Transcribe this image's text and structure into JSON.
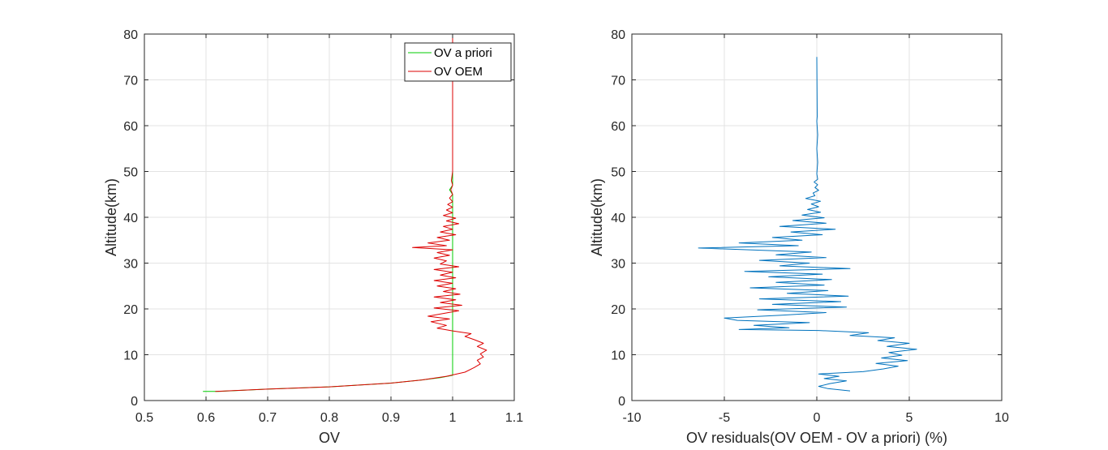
{
  "chart_data": [
    {
      "type": "line",
      "title": "",
      "xlabel": "OV",
      "ylabel": "Altitude(km)",
      "xlim": [
        0.5,
        1.1
      ],
      "ylim": [
        0,
        80
      ],
      "xticks": [
        0.5,
        0.6,
        0.7,
        0.8,
        0.9,
        1,
        1.1
      ],
      "xtick_labels": [
        "0.5",
        "0.6",
        "0.7",
        "0.8",
        "0.9",
        "1",
        "1.1"
      ],
      "yticks": [
        0,
        10,
        20,
        30,
        40,
        50,
        60,
        70,
        80
      ],
      "ytick_labels": [
        "0",
        "10",
        "20",
        "30",
        "40",
        "50",
        "60",
        "70",
        "80"
      ],
      "grid": true,
      "legend": "top-right",
      "series": [
        {
          "name": "OV a priori",
          "color": "#00cc00",
          "points": [
            [
              0.595,
              2
            ],
            [
              0.62,
              2
            ],
            [
              0.7,
              2.5
            ],
            [
              0.8,
              3
            ],
            [
              0.9,
              3.8
            ],
            [
              0.95,
              4.5
            ],
            [
              0.98,
              5
            ],
            [
              1.0,
              5.5
            ],
            [
              1.0,
              45
            ],
            [
              0.995,
              46
            ],
            [
              1.0,
              47
            ],
            [
              1.0,
              75
            ]
          ]
        },
        {
          "name": "OV OEM",
          "color": "#dd0000",
          "points": [
            [
              0.615,
              2
            ],
            [
              0.7,
              2.5
            ],
            [
              0.8,
              3
            ],
            [
              0.9,
              3.8
            ],
            [
              0.95,
              4.5
            ],
            [
              0.99,
              5.3
            ],
            [
              1.02,
              6.2
            ],
            [
              1.035,
              7.2
            ],
            [
              1.045,
              8
            ],
            [
              1.04,
              8.8
            ],
            [
              1.05,
              9.5
            ],
            [
              1.045,
              10.2
            ],
            [
              1.055,
              11
            ],
            [
              1.04,
              11.8
            ],
            [
              1.05,
              12.5
            ],
            [
              1.035,
              13.3
            ],
            [
              1.02,
              14
            ],
            [
              1.03,
              14.6
            ],
            [
              1.0,
              15.2
            ],
            [
              0.975,
              15.8
            ],
            [
              0.99,
              16.4
            ],
            [
              0.965,
              17.2
            ],
            [
              0.995,
              17.8
            ],
            [
              0.96,
              18.4
            ],
            [
              0.985,
              19
            ],
            [
              1.01,
              19.6
            ],
            [
              0.97,
              20.2
            ],
            [
              1.015,
              20.8
            ],
            [
              0.98,
              21.4
            ],
            [
              1.005,
              22
            ],
            [
              0.97,
              22.6
            ],
            [
              1.012,
              23.2
            ],
            [
              0.985,
              23.8
            ],
            [
              1.005,
              24.4
            ],
            [
              0.975,
              25
            ],
            [
              1.0,
              25.6
            ],
            [
              0.97,
              26.2
            ],
            [
              1.005,
              26.8
            ],
            [
              0.98,
              27.4
            ],
            [
              1.0,
              28
            ],
            [
              0.97,
              28.6
            ],
            [
              1.01,
              29.2
            ],
            [
              0.98,
              29.8
            ],
            [
              0.99,
              30.5
            ],
            [
              0.97,
              31.1
            ],
            [
              0.995,
              31.7
            ],
            [
              0.975,
              32.3
            ],
            [
              1.0,
              32.9
            ],
            [
              0.935,
              33.4
            ],
            [
              0.99,
              33.8
            ],
            [
              0.96,
              34.4
            ],
            [
              0.995,
              35
            ],
            [
              0.975,
              35.6
            ],
            [
              1.005,
              36.2
            ],
            [
              0.98,
              36.8
            ],
            [
              1.0,
              37.4
            ],
            [
              0.985,
              38
            ],
            [
              1.01,
              38.6
            ],
            [
              0.99,
              39.2
            ],
            [
              1.005,
              39.8
            ],
            [
              0.985,
              40.4
            ],
            [
              1.0,
              41
            ],
            [
              0.99,
              41.6
            ],
            [
              1.0,
              42.2
            ],
            [
              0.992,
              42.8
            ],
            [
              1.0,
              43.4
            ],
            [
              0.995,
              44.2
            ],
            [
              1.0,
              45
            ],
            [
              0.997,
              46
            ],
            [
              1.0,
              47
            ],
            [
              0.998,
              48
            ],
            [
              1.0,
              50
            ],
            [
              1.0,
              62
            ],
            [
              1.0,
              80
            ]
          ]
        }
      ]
    },
    {
      "type": "line",
      "title": "",
      "xlabel": "OV residuals(OV OEM - OV a priori) (%)",
      "ylabel": "Altitude(km)",
      "xlim": [
        -10,
        10
      ],
      "ylim": [
        0,
        80
      ],
      "xticks": [
        -10,
        -5,
        0,
        5,
        10
      ],
      "xtick_labels": [
        "-10",
        "-5",
        "0",
        "5",
        "10"
      ],
      "yticks": [
        0,
        10,
        20,
        30,
        40,
        50,
        60,
        70,
        80
      ],
      "ytick_labels": [
        "0",
        "10",
        "20",
        "30",
        "40",
        "50",
        "60",
        "70",
        "80"
      ],
      "grid": true,
      "series": [
        {
          "color": "#0072bd",
          "points": [
            [
              1.8,
              2.1
            ],
            [
              0.6,
              2.6
            ],
            [
              0.1,
              3.1
            ],
            [
              0.7,
              3.7
            ],
            [
              1.6,
              4.3
            ],
            [
              0.4,
              4.8
            ],
            [
              1.2,
              5.3
            ],
            [
              0.1,
              5.8
            ],
            [
              2.5,
              6.3
            ],
            [
              3.6,
              6.9
            ],
            [
              4.4,
              7.5
            ],
            [
              3.2,
              8.1
            ],
            [
              4.9,
              8.7
            ],
            [
              3.5,
              9.3
            ],
            [
              4.6,
              9.9
            ],
            [
              3.9,
              10.5
            ],
            [
              5.4,
              11.2
            ],
            [
              3.8,
              11.8
            ],
            [
              5.0,
              12.5
            ],
            [
              3.3,
              13.1
            ],
            [
              4.2,
              13.7
            ],
            [
              1.8,
              14.2
            ],
            [
              2.8,
              14.8
            ],
            [
              0.1,
              15.3
            ],
            [
              -4.2,
              15.5
            ],
            [
              -1.5,
              15.9
            ],
            [
              -3.4,
              16.4
            ],
            [
              -0.4,
              17.0
            ],
            [
              -4.3,
              17.5
            ],
            [
              -5.0,
              18.0
            ],
            [
              -2.0,
              18.6
            ],
            [
              0.5,
              19.2
            ],
            [
              -3.2,
              19.8
            ],
            [
              1.6,
              20.4
            ],
            [
              -2.4,
              21.0
            ],
            [
              1.3,
              21.6
            ],
            [
              -3.1,
              22.2
            ],
            [
              1.7,
              22.8
            ],
            [
              -1.6,
              23.4
            ],
            [
              0.6,
              24.0
            ],
            [
              -3.6,
              24.6
            ],
            [
              0.4,
              25.2
            ],
            [
              -2.2,
              25.8
            ],
            [
              0.8,
              26.4
            ],
            [
              -2.6,
              27.0
            ],
            [
              0.3,
              27.6
            ],
            [
              -3.9,
              28.2
            ],
            [
              1.8,
              28.8
            ],
            [
              -2.0,
              29.4
            ],
            [
              -0.4,
              30.0
            ],
            [
              -3.1,
              30.6
            ],
            [
              0.5,
              31.2
            ],
            [
              -2.2,
              31.8
            ],
            [
              -0.3,
              32.4
            ],
            [
              -6.4,
              33.3
            ],
            [
              -1.0,
              33.8
            ],
            [
              -4.2,
              34.4
            ],
            [
              -0.8,
              35.0
            ],
            [
              -2.4,
              35.6
            ],
            [
              0.3,
              36.2
            ],
            [
              -1.4,
              36.8
            ],
            [
              1.0,
              37.4
            ],
            [
              -2.0,
              38.0
            ],
            [
              0.5,
              38.7
            ],
            [
              -1.3,
              39.3
            ],
            [
              0.4,
              39.9
            ],
            [
              -0.8,
              40.5
            ],
            [
              0.2,
              41.1
            ],
            [
              -0.5,
              41.7
            ],
            [
              0.1,
              42.3
            ],
            [
              -0.3,
              42.9
            ],
            [
              0.2,
              43.5
            ],
            [
              -0.6,
              44.1
            ],
            [
              -0.1,
              44.7
            ],
            [
              -0.2,
              45.3
            ],
            [
              0.1,
              45.9
            ],
            [
              -0.1,
              46.5
            ],
            [
              0.05,
              47.1
            ],
            [
              -0.15,
              47.7
            ],
            [
              0.05,
              48.3
            ],
            [
              0.0,
              49.5
            ],
            [
              0.05,
              52
            ],
            [
              0.0,
              55
            ],
            [
              0.05,
              58
            ],
            [
              0.0,
              61
            ],
            [
              0.02,
              62
            ],
            [
              0.0,
              75
            ]
          ]
        }
      ]
    }
  ]
}
